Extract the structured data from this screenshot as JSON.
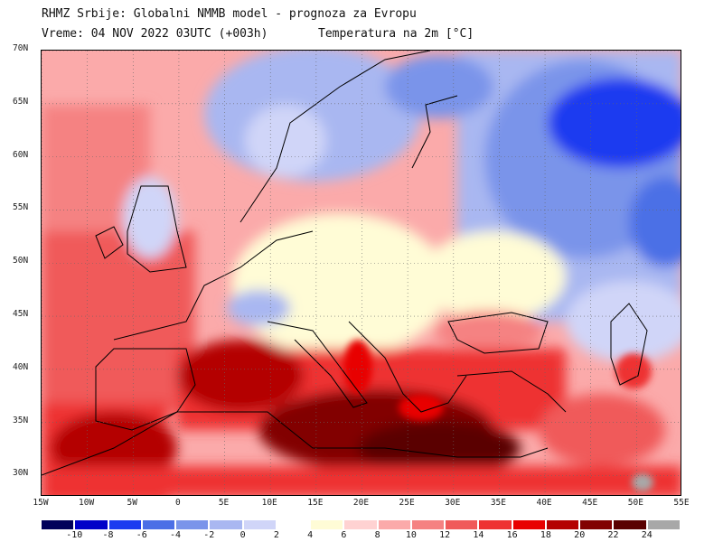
{
  "header": {
    "line1": "RHMZ Srbije: Globalni NMMB model - prognoza za Evropu",
    "line2_time": "Vreme: 04 NOV 2022 03UTC (+003h)",
    "line2_param": "Temperatura na 2m [°C]"
  },
  "map": {
    "lon_range": [
      -15,
      55
    ],
    "lat_range": [
      28,
      70
    ],
    "lat_labels": [
      "70N",
      "65N",
      "60N",
      "55N",
      "50N",
      "45N",
      "40N",
      "35N",
      "30N"
    ],
    "lon_labels": [
      "15W",
      "10W",
      "5W",
      "0",
      "5E",
      "10E",
      "15E",
      "20E",
      "25E",
      "30E",
      "35E",
      "40E",
      "45E",
      "50E",
      "55E"
    ],
    "grid": true
  },
  "legend": {
    "colors": [
      "#00005a",
      "#0000c8",
      "#1c3bf0",
      "#4c6fe6",
      "#7a94ea",
      "#a9b7f1",
      "#d0d5f8",
      "#ffffff",
      "#fffcd6",
      "#ffd2d2",
      "#fbaaaa",
      "#f58282",
      "#f05a5a",
      "#ee3232",
      "#e80000",
      "#b40000",
      "#820000",
      "#5a0000",
      "#a8a8a8"
    ],
    "labels": [
      "-10",
      "-8",
      "-6",
      "-4",
      "-2",
      "0",
      "2",
      "4",
      "6",
      "8",
      "10",
      "12",
      "14",
      "16",
      "18",
      "20",
      "22",
      "24"
    ]
  }
}
